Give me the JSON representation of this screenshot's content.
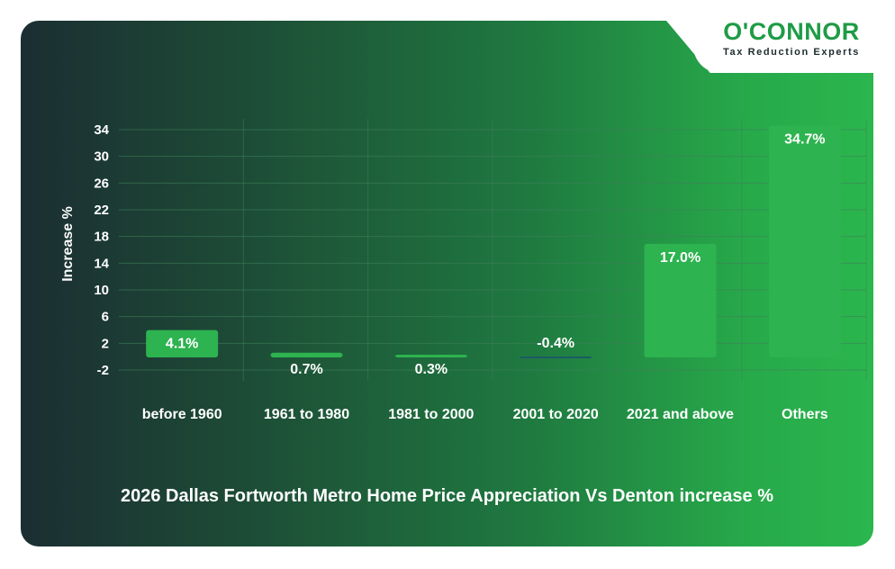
{
  "brand": {
    "name": "O'CONNOR",
    "tagline": "Tax Reduction Experts",
    "color": "#1f9b46"
  },
  "chart_data": {
    "type": "bar",
    "title": "2026 Dallas Fortworth Metro Home Price Appreciation Vs Denton increase %",
    "ylabel": "Increase %",
    "xlabel": "",
    "categories": [
      "before 1960",
      "1961 to 1980",
      "1981 to 2000",
      "2001 to 2020",
      "2021 and above",
      "Others"
    ],
    "values": [
      4.1,
      0.7,
      0.3,
      -0.4,
      17.0,
      34.7
    ],
    "data_labels": [
      "4.1%",
      "0.7%",
      "0.3%",
      "-0.4%",
      "17.0%",
      "34.7%"
    ],
    "yticks": [
      34,
      30,
      26,
      22,
      18,
      14,
      10,
      6,
      2,
      -2
    ],
    "ylim": [
      -2,
      34
    ],
    "grid": true,
    "colors": {
      "positive_bar": "#2db34f",
      "negative_bar": "#1d5a66",
      "grid": "#3f7f5a",
      "text": "#ffffff"
    }
  }
}
